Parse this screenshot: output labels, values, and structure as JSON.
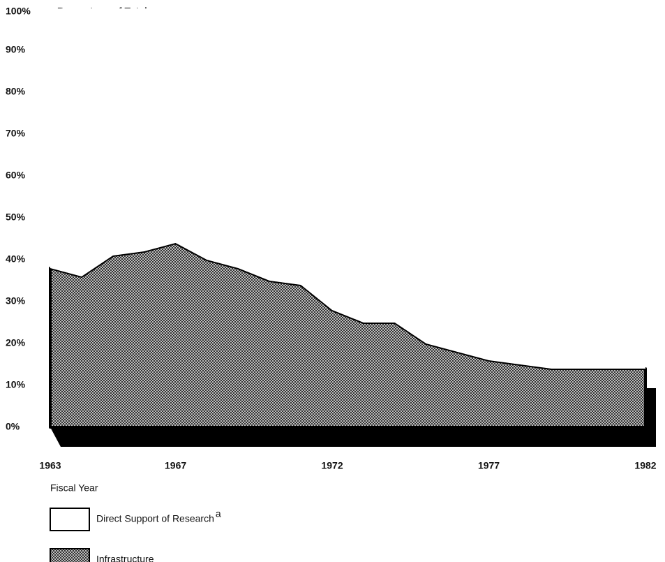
{
  "chart_data": {
    "type": "stacked_area",
    "title": "Percentage of Total",
    "xlabel": "Fiscal Year",
    "x": [
      1963,
      1964,
      1965,
      1966,
      1967,
      1968,
      1969,
      1970,
      1971,
      1972,
      1973,
      1974,
      1975,
      1976,
      1977,
      1978,
      1979,
      1980,
      1981,
      1982
    ],
    "series": [
      {
        "name": "Infrastructure",
        "color": "#555555",
        "values": [
          38,
          36,
          41,
          42,
          44,
          40,
          38,
          35,
          34,
          28,
          25,
          25,
          20,
          18,
          16,
          15,
          14,
          14,
          14,
          14
        ]
      },
      {
        "name": "Direct Support of Research",
        "color": "#ffffff",
        "values": [
          62,
          64,
          59,
          58,
          56,
          60,
          62,
          65,
          66,
          72,
          75,
          75,
          80,
          82,
          84,
          85,
          86,
          86,
          86,
          86
        ]
      }
    ],
    "legend_footnote": "a",
    "xlim": [
      1963,
      1982
    ],
    "xticks": [
      1963,
      1967,
      1972,
      1977,
      1982
    ],
    "ylim": [
      0,
      100
    ],
    "yticks": [
      {
        "value": 0,
        "label": "0%"
      },
      {
        "value": 10,
        "label": "10%"
      },
      {
        "value": 20,
        "label": "20%"
      },
      {
        "value": 30,
        "label": "30%"
      },
      {
        "value": 40,
        "label": "40%"
      },
      {
        "value": 50,
        "label": "50%"
      },
      {
        "value": 60,
        "label": "60%"
      },
      {
        "value": 70,
        "label": "70%"
      },
      {
        "value": 80,
        "label": "80%"
      },
      {
        "value": 90,
        "label": "90%"
      },
      {
        "value": 100,
        "label": "100%"
      }
    ]
  }
}
